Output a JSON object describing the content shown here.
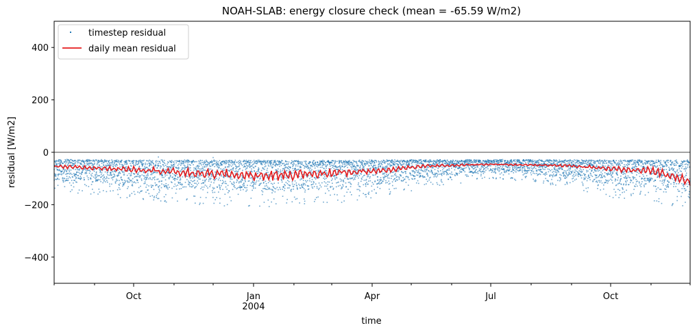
{
  "chart_data": {
    "type": "line",
    "title": "NOAH-SLAB: energy closure check (mean = -65.59 W/m2)",
    "xlabel": "time",
    "ylabel": "residual [W/m2]",
    "xlim": [
      "2003-08-01",
      "2004-12-01"
    ],
    "ylim": [
      -500,
      500
    ],
    "y_ticks": [
      {
        "value": -400,
        "label": "−400"
      },
      {
        "value": -200,
        "label": "−200"
      },
      {
        "value": 0,
        "label": "0"
      },
      {
        "value": 200,
        "label": "200"
      },
      {
        "value": 400,
        "label": "400"
      }
    ],
    "x_ticks": [
      {
        "value": "2003-10-01",
        "label": "Oct",
        "sublabel": ""
      },
      {
        "value": "2004-01-01",
        "label": "Jan",
        "sublabel": "2004"
      },
      {
        "value": "2004-04-01",
        "label": "Apr",
        "sublabel": ""
      },
      {
        "value": "2004-07-01",
        "label": "Jul",
        "sublabel": ""
      },
      {
        "value": "2004-10-01",
        "label": "Oct",
        "sublabel": ""
      }
    ],
    "minor_x_ticks": [
      "2003-08-01",
      "2003-09-01",
      "2003-11-01",
      "2003-12-01",
      "2004-02-01",
      "2004-03-01",
      "2004-05-01",
      "2004-06-01",
      "2004-08-01",
      "2004-09-01",
      "2004-11-01",
      "2004-12-01"
    ],
    "reference_line": {
      "y": 0
    },
    "legend": {
      "placement": "upper-left",
      "entries": [
        "timestep residual",
        "daily mean residual"
      ]
    },
    "colors": {
      "scatter": "#1f77b4",
      "line": "#e41a1c",
      "reference": "#444444"
    },
    "series": [
      {
        "name": "timestep residual",
        "kind": "scatter",
        "envelope": {
          "x": [
            "2003-08-01",
            "2003-09-01",
            "2003-10-01",
            "2003-11-01",
            "2003-12-01",
            "2004-01-01",
            "2004-02-01",
            "2004-03-01",
            "2004-04-01",
            "2004-05-01",
            "2004-06-01",
            "2004-07-01",
            "2004-08-01",
            "2004-09-01",
            "2004-10-01",
            "2004-11-01",
            "2004-12-01"
          ],
          "upper": [
            -30,
            -30,
            -32,
            -32,
            -32,
            -33,
            -33,
            -33,
            -32,
            -31,
            -31,
            -30,
            -30,
            -31,
            -31,
            -32,
            -32
          ],
          "lower": [
            -150,
            -165,
            -185,
            -195,
            -205,
            -210,
            -205,
            -200,
            -175,
            -145,
            -120,
            -100,
            -110,
            -140,
            -170,
            -195,
            -215
          ]
        }
      },
      {
        "name": "daily mean residual",
        "kind": "line",
        "x": [
          "2003-08-01",
          "2003-08-15",
          "2003-09-01",
          "2003-09-15",
          "2003-10-01",
          "2003-10-15",
          "2003-11-01",
          "2003-11-15",
          "2003-12-01",
          "2003-12-15",
          "2004-01-01",
          "2004-01-15",
          "2004-02-01",
          "2004-02-15",
          "2004-03-01",
          "2004-03-15",
          "2004-04-01",
          "2004-04-15",
          "2004-05-01",
          "2004-05-15",
          "2004-06-01",
          "2004-06-15",
          "2004-07-01",
          "2004-07-15",
          "2004-08-01",
          "2004-08-15",
          "2004-09-01",
          "2004-09-15",
          "2004-10-01",
          "2004-10-15",
          "2004-11-01",
          "2004-11-15",
          "2004-12-01"
        ],
        "y": [
          -55,
          -57,
          -60,
          -62,
          -65,
          -68,
          -75,
          -80,
          -82,
          -85,
          -90,
          -88,
          -85,
          -82,
          -80,
          -75,
          -72,
          -65,
          -58,
          -52,
          -50,
          -48,
          -46,
          -47,
          -48,
          -50,
          -52,
          -57,
          -62,
          -68,
          -70,
          -85,
          -110
        ]
      }
    ]
  }
}
